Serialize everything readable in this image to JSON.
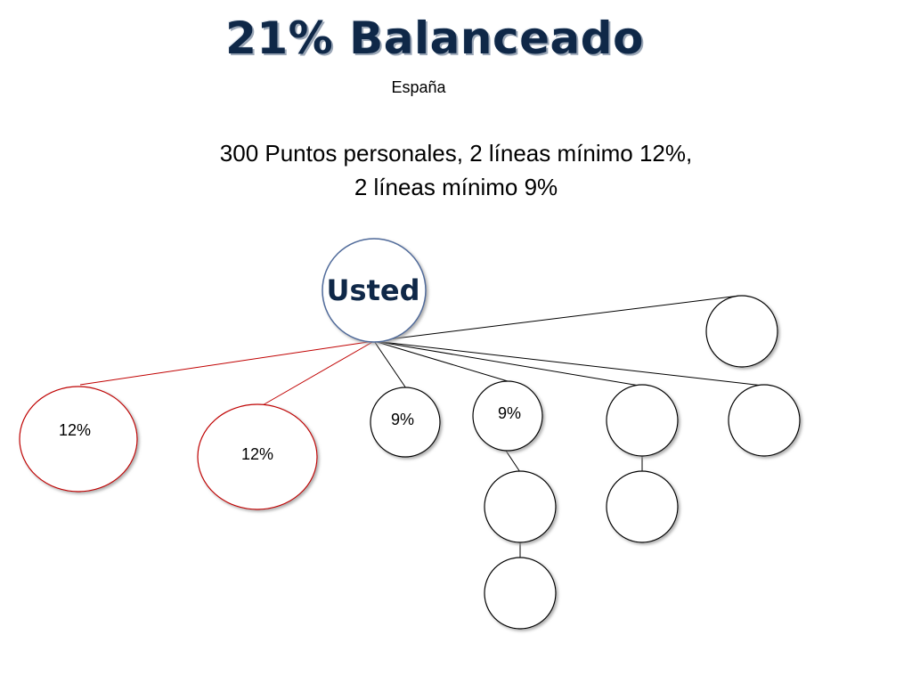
{
  "title": "21% Balanceado",
  "subtitle": "España",
  "headline": {
    "line1": "300 Puntos personales, 2 líneas mínimo 12%,",
    "line2": "2 líneas mínimo 9%"
  },
  "diagram": {
    "root_label": "Usted",
    "nodes": [
      {
        "id": "leg-12-a",
        "label": "12%",
        "color": "#c00000"
      },
      {
        "id": "leg-12-b",
        "label": "12%",
        "color": "#c00000"
      },
      {
        "id": "leg-9-a",
        "label": "9%",
        "color": "#000000"
      },
      {
        "id": "leg-9-b",
        "label": "9%",
        "color": "#000000"
      },
      {
        "id": "leg-empty-a",
        "label": "",
        "color": "#000000"
      },
      {
        "id": "leg-empty-b",
        "label": "",
        "color": "#000000"
      },
      {
        "id": "leg-empty-top",
        "label": "",
        "color": "#000000"
      },
      {
        "id": "sub-9b-1",
        "label": "",
        "color": "#000000"
      },
      {
        "id": "sub-9b-2",
        "label": "",
        "color": "#000000"
      },
      {
        "id": "sub-empty-a-1",
        "label": "",
        "color": "#000000"
      }
    ],
    "colors": {
      "root_stroke": "#4f6a9a",
      "strong_leg": "#c00000",
      "default": "#000000"
    }
  }
}
